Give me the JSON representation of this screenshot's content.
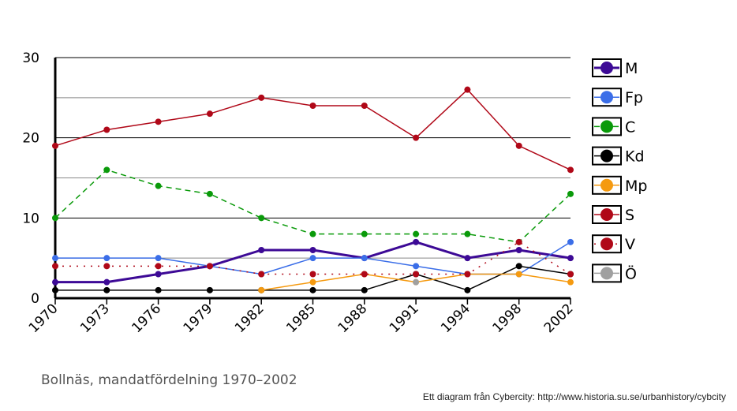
{
  "chart_data": {
    "type": "line",
    "title": "",
    "xlabel": "",
    "ylabel": "",
    "categories": [
      "1970",
      "1973",
      "1976",
      "1979",
      "1982",
      "1985",
      "1988",
      "1991",
      "1994",
      "1998",
      "2002"
    ],
    "y_ticks": [
      0,
      10,
      20,
      30
    ],
    "ylim": [
      0,
      30
    ],
    "grid": "horizontal",
    "legend_position": "right",
    "series": [
      {
        "name": "M",
        "color": "#3d0a96",
        "style": "solid",
        "width": 3,
        "values": [
          2,
          2,
          3,
          4,
          6,
          6,
          5,
          7,
          5,
          6,
          5
        ]
      },
      {
        "name": "Fp",
        "color": "#3b6ee8",
        "style": "solid",
        "width": 1.5,
        "values": [
          5,
          5,
          5,
          4,
          3,
          5,
          5,
          4,
          3,
          3,
          7
        ]
      },
      {
        "name": "C",
        "color": "#0a9a0a",
        "style": "dashed",
        "width": 1.5,
        "values": [
          10,
          16,
          14,
          13,
          10,
          8,
          8,
          8,
          8,
          7,
          13
        ]
      },
      {
        "name": "Kd",
        "color": "#000000",
        "style": "solid",
        "width": 1.5,
        "values": [
          1,
          1,
          1,
          1,
          1,
          1,
          1,
          3,
          1,
          4,
          3
        ]
      },
      {
        "name": "Mp",
        "color": "#f59a10",
        "style": "solid",
        "width": 1.5,
        "values": [
          null,
          null,
          null,
          null,
          1,
          2,
          3,
          2,
          3,
          3,
          2
        ]
      },
      {
        "name": "S",
        "color": "#b00818",
        "style": "solid",
        "width": 1.5,
        "values": [
          19,
          21,
          22,
          23,
          25,
          24,
          24,
          20,
          26,
          19,
          16
        ]
      },
      {
        "name": "V",
        "color": "#b00818",
        "style": "dotted",
        "width": 1.5,
        "values": [
          4,
          4,
          4,
          4,
          3,
          3,
          3,
          3,
          3,
          7,
          3
        ]
      },
      {
        "name": "Ö",
        "color": "#a0a0a0",
        "style": "solid",
        "width": 1.5,
        "values": [
          null,
          null,
          null,
          null,
          null,
          null,
          null,
          2,
          null,
          null,
          null
        ]
      }
    ]
  },
  "caption": "Bollnäs, mandatfördelning 1970–2002",
  "credit": "Ett diagram från Cybercity: http://www.historia.su.se/urbanhistory/cybcity"
}
